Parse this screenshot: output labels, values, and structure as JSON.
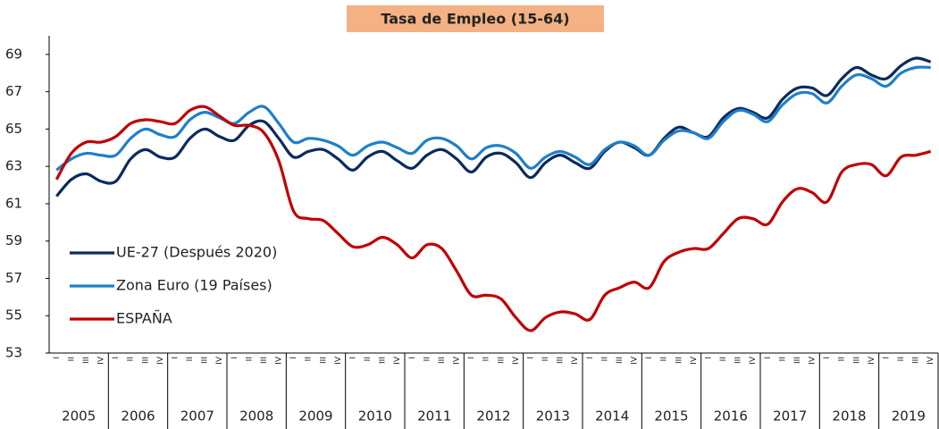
{
  "chart_data": {
    "type": "line",
    "title": "Tasa de Empleo (15-64)",
    "categories": [
      "I",
      "II",
      "III",
      "IV",
      "I",
      "II",
      "III",
      "IV",
      "I",
      "II",
      "III",
      "IV",
      "I",
      "II",
      "III",
      "IV",
      "I",
      "II",
      "III",
      "IV",
      "I",
      "II",
      "III",
      "IV",
      "I",
      "II",
      "III",
      "IV",
      "I",
      "II",
      "III",
      "IV",
      "I",
      "II",
      "III",
      "IV",
      "I",
      "II",
      "III",
      "IV",
      "I",
      "II",
      "III",
      "IV",
      "I",
      "II",
      "III",
      "IV",
      "I",
      "II",
      "III",
      "IV",
      "I",
      "II",
      "III",
      "IV",
      "I",
      "II",
      "III",
      "IV"
    ],
    "years": [
      "2005",
      "2006",
      "2007",
      "2008",
      "2009",
      "2010",
      "2011",
      "2012",
      "2013",
      "2014",
      "2015",
      "2016",
      "2017",
      "2018",
      "2019"
    ],
    "series": [
      {
        "name": "UE-27 (Después 2020)",
        "color": "#0d2a5c",
        "values": [
          61.4,
          62.3,
          62.6,
          62.2,
          62.2,
          63.4,
          63.9,
          63.5,
          63.5,
          64.5,
          65.0,
          64.6,
          64.4,
          65.2,
          65.4,
          64.5,
          63.5,
          63.8,
          63.9,
          63.4,
          62.8,
          63.5,
          63.8,
          63.3,
          62.9,
          63.6,
          63.9,
          63.4,
          62.7,
          63.5,
          63.7,
          63.2,
          62.4,
          63.2,
          63.6,
          63.2,
          62.9,
          63.8,
          64.3,
          64.0,
          63.6,
          64.5,
          65.1,
          64.8,
          64.6,
          65.6,
          66.1,
          65.9,
          65.6,
          66.6,
          67.2,
          67.2,
          66.8,
          67.7,
          68.3,
          67.9,
          67.7,
          68.4,
          68.8,
          68.6
        ]
      },
      {
        "name": "Zona Euro (19 Países)",
        "color": "#1f7fc9",
        "values": [
          62.8,
          63.4,
          63.7,
          63.6,
          63.6,
          64.5,
          65.0,
          64.7,
          64.6,
          65.5,
          65.9,
          65.6,
          65.3,
          65.9,
          66.2,
          65.3,
          64.3,
          64.5,
          64.4,
          64.1,
          63.6,
          64.1,
          64.3,
          64.0,
          63.7,
          64.4,
          64.5,
          64.1,
          63.4,
          64.0,
          64.1,
          63.7,
          62.9,
          63.5,
          63.8,
          63.5,
          63.1,
          63.9,
          64.3,
          64.1,
          63.6,
          64.4,
          64.9,
          64.8,
          64.5,
          65.4,
          66.0,
          65.8,
          65.4,
          66.3,
          66.9,
          66.9,
          66.4,
          67.3,
          67.9,
          67.7,
          67.3,
          68.0,
          68.3,
          68.3
        ]
      },
      {
        "name": "ESPAÑA",
        "color": "#c00000",
        "values": [
          62.3,
          63.7,
          64.3,
          64.3,
          64.6,
          65.3,
          65.5,
          65.4,
          65.3,
          66.0,
          66.2,
          65.7,
          65.2,
          65.2,
          64.8,
          63.3,
          60.6,
          60.2,
          60.1,
          59.4,
          58.7,
          58.8,
          59.2,
          58.8,
          58.1,
          58.8,
          58.6,
          57.4,
          56.1,
          56.1,
          55.9,
          54.9,
          54.2,
          54.9,
          55.2,
          55.1,
          54.8,
          56.1,
          56.5,
          56.8,
          56.5,
          57.9,
          58.4,
          58.6,
          58.6,
          59.4,
          60.2,
          60.2,
          59.9,
          61.1,
          61.8,
          61.6,
          61.1,
          62.7,
          63.1,
          63.1,
          62.5,
          63.5,
          63.6,
          63.8
        ]
      }
    ],
    "ylim": [
      53,
      70
    ],
    "yticks": [
      53,
      55,
      57,
      59,
      61,
      63,
      65,
      67,
      69
    ],
    "grid": false,
    "legend": "lower left"
  }
}
